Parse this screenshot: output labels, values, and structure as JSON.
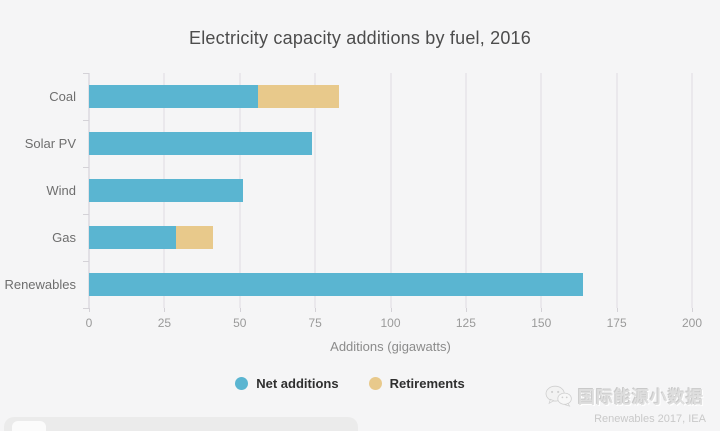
{
  "page": {
    "background": "#f5f5f6"
  },
  "chart_data": {
    "type": "bar",
    "orientation": "horizontal",
    "stacked": true,
    "title": "Electricity capacity additions by fuel, 2016",
    "categories": [
      "Coal",
      "Solar PV",
      "Wind",
      "Gas",
      "Renewables"
    ],
    "series": [
      {
        "name": "Net additions",
        "color": "#5ab5d1",
        "values": [
          56,
          74,
          51,
          29,
          164
        ]
      },
      {
        "name": "Retirements",
        "color": "#e8c98b",
        "values": [
          27,
          0,
          0,
          12,
          0
        ]
      }
    ],
    "xlabel": "Additions (gigawatts)",
    "xlim": [
      0,
      200
    ],
    "xticks": [
      0,
      25,
      50,
      75,
      100,
      125,
      150,
      175,
      200
    ],
    "grid": true,
    "legend_position": "bottom",
    "gridline_color": "#eae8ec"
  },
  "source": {
    "text": "Renewables 2017, IEA"
  },
  "watermark": {
    "text": "国际能源小数据",
    "icon": "wechat-logo"
  }
}
